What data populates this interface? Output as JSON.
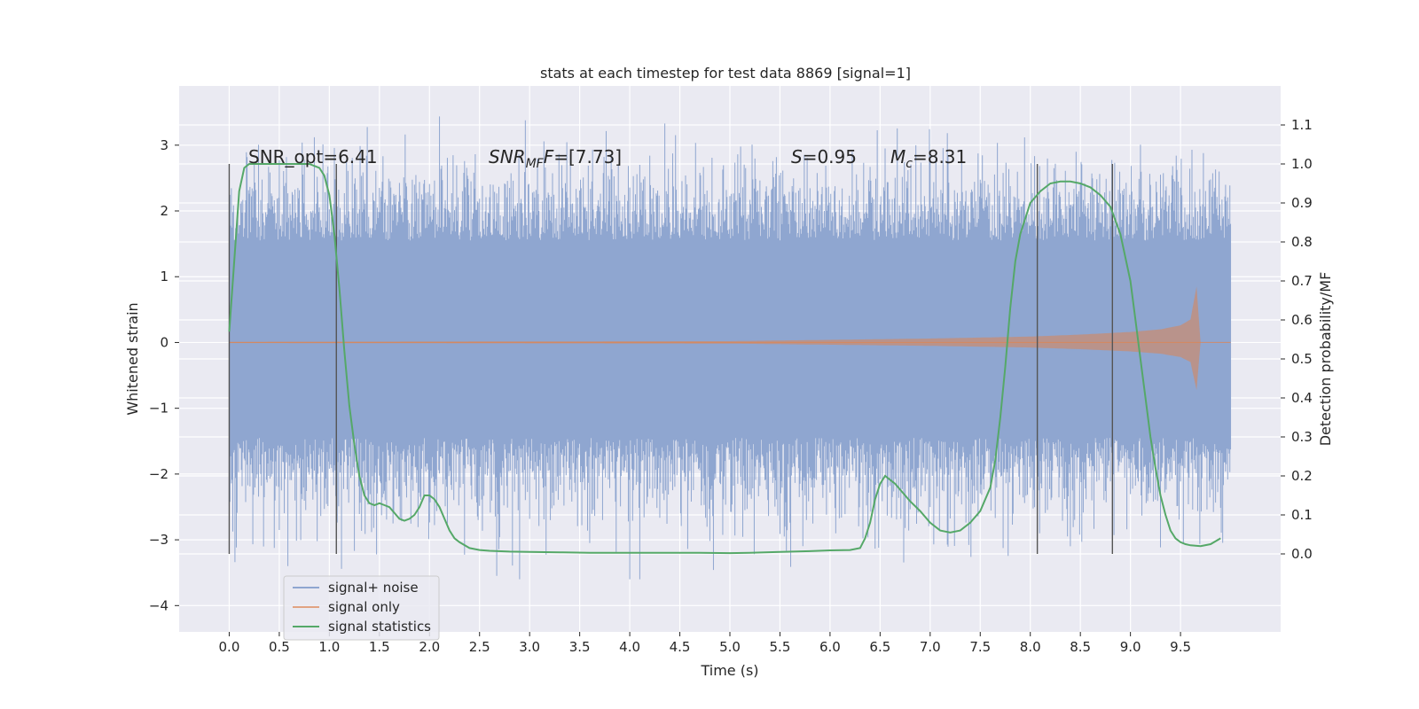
{
  "chart_data": {
    "type": "line",
    "title": "stats at each timestep for test data 8869 [signal=1]",
    "xlabel": "Time (s)",
    "ylabel": "Whitened strain",
    "ylabel_right": "Detection probability/MF",
    "xlim": [
      -0.5,
      10.5
    ],
    "ylim": [
      -4.4,
      3.9
    ],
    "ylim_right": [
      -0.2,
      1.2
    ],
    "x_ticks": [
      "0.0",
      "0.5",
      "1.0",
      "1.5",
      "2.0",
      "2.5",
      "3.0",
      "3.5",
      "4.0",
      "4.5",
      "5.0",
      "5.5",
      "6.0",
      "6.5",
      "7.0",
      "7.5",
      "8.0",
      "8.5",
      "9.0",
      "9.5"
    ],
    "y_ticks": [
      "3",
      "2",
      "1",
      "0",
      "−1",
      "−2",
      "−3",
      "−4"
    ],
    "y_ticks_right": [
      "1.1",
      "1.0",
      "0.9",
      "0.8",
      "0.7",
      "0.6",
      "0.5",
      "0.4",
      "0.3",
      "0.2",
      "0.1",
      "0.0"
    ],
    "annotations": {
      "snr_opt": "SNR_opt=6.41",
      "snr_mf_main": "SNR",
      "snr_mf_sub": "MF",
      "snr_mf_value": "=[7.73]",
      "s_main": "S",
      "s_value": "=0.95",
      "mc_main": "M",
      "mc_sub": "c",
      "mc_value": "=8.31"
    },
    "vertical_lines_x": [
      0.0,
      1.07,
      8.07,
      8.82
    ],
    "legend": {
      "placement": "lower-left",
      "entries": [
        "signal+ noise",
        "signal only",
        "signal statistics"
      ]
    },
    "grid": true,
    "colors": {
      "noise": "#8fa6d0",
      "signal": "#dd8452",
      "stats": "#55a868",
      "background": "#eaeaf2",
      "grid": "#ffffff",
      "vline": "#555555"
    },
    "series": [
      {
        "name": "signal+ noise",
        "axis": "left",
        "description_range": [
          -3.5,
          3.5
        ],
        "x": [
          0.0,
          10.0
        ]
      },
      {
        "name": "signal only",
        "axis": "left",
        "x": [
          0.0,
          5.0,
          6.0,
          7.0,
          8.0,
          8.5,
          9.0,
          9.3,
          9.5,
          9.6,
          9.66,
          9.7,
          10.0
        ],
        "amplitude": [
          0.01,
          0.02,
          0.04,
          0.06,
          0.09,
          0.12,
          0.16,
          0.2,
          0.26,
          0.35,
          0.85,
          0.0,
          0.0
        ]
      },
      {
        "name": "signal statistics",
        "axis": "right",
        "x": [
          0.0,
          0.05,
          0.1,
          0.15,
          0.2,
          0.3,
          0.5,
          0.7,
          0.8,
          0.9,
          0.95,
          1.0,
          1.05,
          1.1,
          1.15,
          1.2,
          1.25,
          1.3,
          1.35,
          1.4,
          1.45,
          1.5,
          1.55,
          1.6,
          1.7,
          1.75,
          1.8,
          1.85,
          1.9,
          1.95,
          2.0,
          2.05,
          2.1,
          2.15,
          2.2,
          2.25,
          2.3,
          2.4,
          2.5,
          2.6,
          2.8,
          3.0,
          3.3,
          3.6,
          4.0,
          4.5,
          4.7,
          5.0,
          5.2,
          5.5,
          5.8,
          6.0,
          6.2,
          6.3,
          6.35,
          6.4,
          6.45,
          6.5,
          6.55,
          6.6,
          6.65,
          6.7,
          6.75,
          6.8,
          6.9,
          7.0,
          7.1,
          7.2,
          7.3,
          7.4,
          7.5,
          7.6,
          7.65,
          7.7,
          7.75,
          7.8,
          7.85,
          7.9,
          8.0,
          8.1,
          8.2,
          8.3,
          8.4,
          8.5,
          8.6,
          8.7,
          8.8,
          8.9,
          9.0,
          9.05,
          9.1,
          9.15,
          9.2,
          9.25,
          9.3,
          9.35,
          9.4,
          9.45,
          9.5,
          9.55,
          9.6,
          9.7,
          9.8,
          9.9
        ],
        "values": [
          0.57,
          0.75,
          0.93,
          0.99,
          1.0,
          1.0,
          1.0,
          1.0,
          1.0,
          0.99,
          0.97,
          0.92,
          0.82,
          0.68,
          0.52,
          0.38,
          0.28,
          0.2,
          0.15,
          0.13,
          0.125,
          0.13,
          0.125,
          0.12,
          0.09,
          0.085,
          0.09,
          0.1,
          0.12,
          0.15,
          0.15,
          0.14,
          0.12,
          0.09,
          0.06,
          0.04,
          0.03,
          0.015,
          0.01,
          0.008,
          0.006,
          0.005,
          0.004,
          0.003,
          0.003,
          0.003,
          0.003,
          0.002,
          0.003,
          0.005,
          0.007,
          0.009,
          0.01,
          0.015,
          0.04,
          0.08,
          0.14,
          0.18,
          0.2,
          0.19,
          0.18,
          0.165,
          0.15,
          0.135,
          0.11,
          0.08,
          0.06,
          0.055,
          0.06,
          0.08,
          0.11,
          0.17,
          0.24,
          0.35,
          0.48,
          0.63,
          0.75,
          0.82,
          0.9,
          0.93,
          0.95,
          0.955,
          0.955,
          0.95,
          0.94,
          0.92,
          0.89,
          0.82,
          0.7,
          0.6,
          0.5,
          0.4,
          0.3,
          0.22,
          0.15,
          0.1,
          0.06,
          0.04,
          0.03,
          0.025,
          0.022,
          0.02,
          0.025,
          0.04
        ]
      }
    ]
  }
}
